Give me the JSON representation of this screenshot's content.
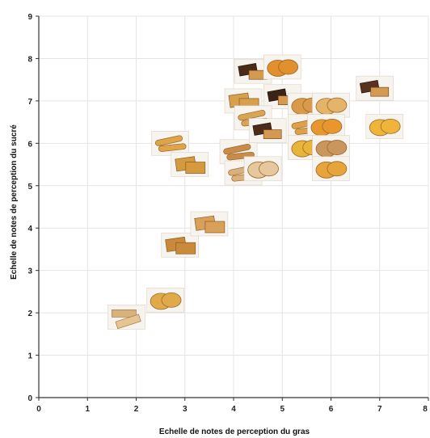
{
  "chart_data": {
    "type": "scatter",
    "title": "",
    "xlabel": "Echelle de notes de perception du gras",
    "ylabel": "Echelle de notes de perception du sucré",
    "xlim": [
      0,
      8
    ],
    "ylim": [
      0,
      9
    ],
    "x_ticks": [
      "0",
      "1",
      "2",
      "3",
      "4",
      "5",
      "6",
      "7",
      "8"
    ],
    "y_ticks": [
      "0",
      "1",
      "2",
      "3",
      "4",
      "5",
      "6",
      "7",
      "8",
      "9"
    ],
    "grid": true,
    "marker": "biscuit-photo-thumbnail",
    "points": [
      {
        "x": 1.8,
        "y": 1.9,
        "kind": "wafer",
        "color": "#d8b27a"
      },
      {
        "x": 2.6,
        "y": 2.3,
        "kind": "round",
        "color": "#e0a94a"
      },
      {
        "x": 2.9,
        "y": 3.6,
        "kind": "rect",
        "color": "#c98a3c"
      },
      {
        "x": 3.5,
        "y": 4.1,
        "kind": "rect",
        "color": "#d9a05a"
      },
      {
        "x": 2.7,
        "y": 6.0,
        "kind": "finger",
        "color": "#e0a448"
      },
      {
        "x": 3.1,
        "y": 5.5,
        "kind": "rect",
        "color": "#d69a3e"
      },
      {
        "x": 4.1,
        "y": 5.8,
        "kind": "finger",
        "color": "#c98b4a"
      },
      {
        "x": 4.2,
        "y": 5.3,
        "kind": "finger",
        "color": "#dcb07e"
      },
      {
        "x": 4.6,
        "y": 5.4,
        "kind": "round",
        "color": "#e6c79e"
      },
      {
        "x": 4.4,
        "y": 7.7,
        "kind": "choc",
        "color": "#4a2b18"
      },
      {
        "x": 5.0,
        "y": 7.8,
        "kind": "round",
        "color": "#e2902e"
      },
      {
        "x": 4.2,
        "y": 7.0,
        "kind": "rect",
        "color": "#d7a04f"
      },
      {
        "x": 5.0,
        "y": 7.1,
        "kind": "choc",
        "color": "#3b2416"
      },
      {
        "x": 4.4,
        "y": 6.6,
        "kind": "finger",
        "color": "#d8a456"
      },
      {
        "x": 4.7,
        "y": 6.3,
        "kind": "choc",
        "color": "#4b2d1a"
      },
      {
        "x": 5.5,
        "y": 6.9,
        "kind": "round",
        "color": "#d99a4a"
      },
      {
        "x": 6.0,
        "y": 6.9,
        "kind": "round",
        "color": "#e4b46a"
      },
      {
        "x": 5.5,
        "y": 6.4,
        "kind": "finger",
        "color": "#e0a04a"
      },
      {
        "x": 5.9,
        "y": 6.4,
        "kind": "round",
        "color": "#e8962e"
      },
      {
        "x": 5.5,
        "y": 5.9,
        "kind": "round",
        "color": "#e8b53a"
      },
      {
        "x": 6.0,
        "y": 5.9,
        "kind": "round",
        "color": "#c9965e"
      },
      {
        "x": 6.0,
        "y": 5.4,
        "kind": "round",
        "color": "#e6a43a"
      },
      {
        "x": 6.9,
        "y": 7.3,
        "kind": "choc",
        "color": "#5a3220"
      },
      {
        "x": 7.1,
        "y": 6.4,
        "kind": "round",
        "color": "#efb43a"
      }
    ]
  }
}
